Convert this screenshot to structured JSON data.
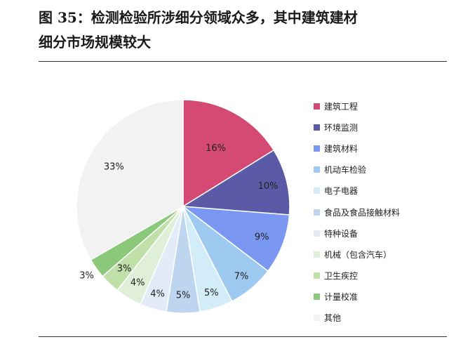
{
  "figure": {
    "title": "图 35：检测检验所涉细分领域众多，其中建筑建材\n细分市场规模较大"
  },
  "chart_data": {
    "type": "pie",
    "start_angle_deg": 0,
    "direction": "clockwise",
    "categories": [
      "建筑工程",
      "环境监测",
      "建筑材料",
      "机动车检验",
      "电子电器",
      "食品及食品接触材料",
      "特种设备",
      "机械（包含汽车）",
      "卫生疾控",
      "计量校准",
      "其他"
    ],
    "values": [
      16,
      10,
      9,
      7,
      5,
      5,
      4,
      4,
      3,
      3,
      33
    ],
    "labels": [
      "16%",
      "10%",
      "9%",
      "7%",
      "5%",
      "5%",
      "4%",
      "4%",
      "3%",
      "3%",
      "33%"
    ],
    "colors": [
      "#d44a74",
      "#5a5aa6",
      "#7a97f2",
      "#9ec9f0",
      "#d2ecf8",
      "#bdd5ef",
      "#e2ebf7",
      "#e0efd8",
      "#bfe0a8",
      "#8cc87a",
      "#f2f2f2"
    ],
    "legend_position": "right"
  }
}
